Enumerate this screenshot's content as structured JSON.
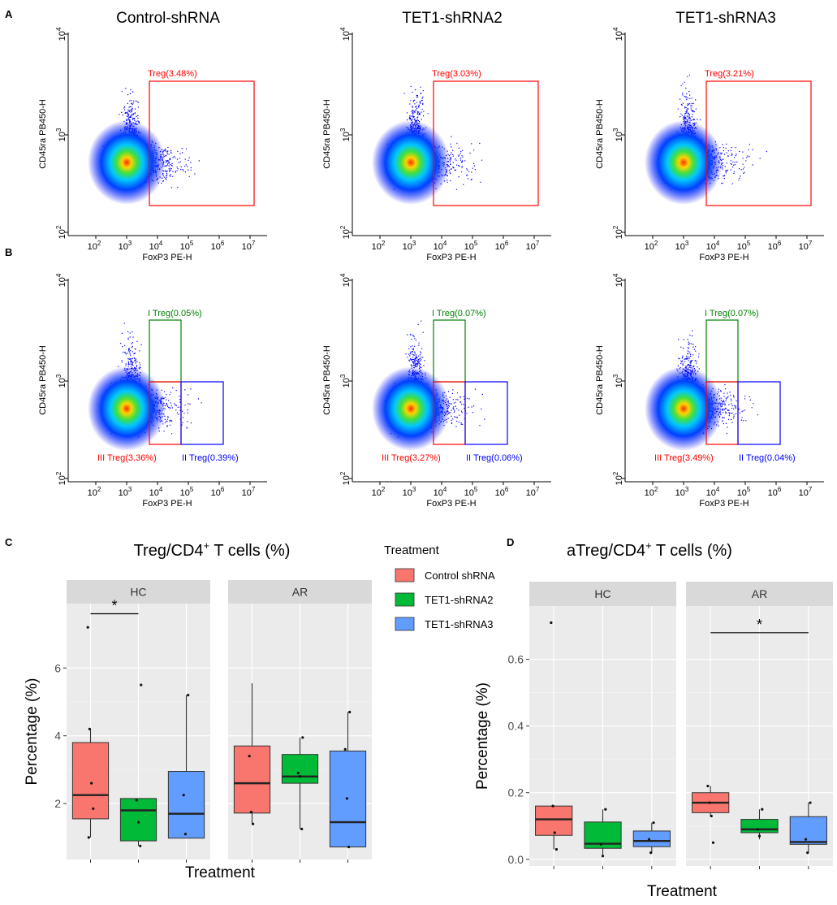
{
  "panel_labels": {
    "A": "A",
    "B": "B",
    "C": "C",
    "D": "D"
  },
  "colors": {
    "treg_gate": "#ff0000",
    "itreg_gate": "#008000",
    "iiitreg_gate": "#ff0000",
    "iitreg_gate": "#0000ff",
    "panel_bg": "#ebebeb",
    "strip_bg": "#d9d9d9",
    "grid": "#ffffff",
    "dots_low": "#0000ff",
    "dots_high": "#ff0000"
  },
  "flow": {
    "column_titles": [
      "Control-shRNA",
      "TET1-shRNA2",
      "TET1-shRNA3"
    ],
    "xlabel": "FoxP3 PE-H",
    "ylabel": "CD45ra PB450-H",
    "x_ticks": [
      "10",
      "10",
      "10",
      "10",
      "10",
      "10"
    ],
    "x_tick_exps": [
      "2",
      "3",
      "4",
      "5",
      "6",
      "7"
    ],
    "y_ticks": [
      "10",
      "10",
      "10"
    ],
    "y_tick_exps": [
      "2",
      "3",
      "4"
    ],
    "row_a_gates": [
      "Treg(3.48%)",
      "Treg(3.03%)",
      "Treg(3.21%)"
    ],
    "row_b_gates": [
      {
        "i": "I Treg(0.05%)",
        "iii": "III Treg(3.36%)",
        "ii": "II Treg(0.39%)"
      },
      {
        "i": "I Treg(0.07%)",
        "iii": "III Treg(3.27%)",
        "ii": "II Treg(0.06%)"
      },
      {
        "i": "I Treg(0.07%)",
        "iii": "III Treg(3.49%)",
        "ii": "II Treg(0.04%)"
      }
    ]
  },
  "legend": {
    "title": "Treatment",
    "items": [
      {
        "label": "Control shRNA",
        "color": "#f8766d"
      },
      {
        "label": "TET1-shRNA2",
        "color": "#00ba38"
      },
      {
        "label": "TET1-shRNA3",
        "color": "#619cff"
      }
    ]
  },
  "chart_data": [
    {
      "type": "box",
      "panel": "C",
      "title": "Treg/CD4",
      "title_sup": "+",
      "title_suffix": " T cells (%)",
      "xlabel": "Treatment",
      "ylabel": "Percentage (%)",
      "ylim": [
        0.35,
        7.9
      ],
      "yticks": [
        2,
        4,
        6
      ],
      "ytick_labels": [
        "2",
        "4",
        "6"
      ],
      "facets": [
        {
          "name": "HC",
          "significance": {
            "from": 0,
            "to": 1,
            "y": 7.6,
            "label": "*"
          },
          "groups": [
            {
              "q1": 1.55,
              "median": 2.25,
              "q3": 3.8,
              "whisker_low": 1.0,
              "whisker_high": 4.2,
              "points": [
                7.2,
                4.2,
                2.6,
                1.85,
                1.0
              ]
            },
            {
              "q1": 0.9,
              "median": 1.8,
              "q3": 2.15,
              "whisker_low": 0.75,
              "whisker_high": 2.15,
              "points": [
                5.5,
                2.1,
                1.45,
                0.75
              ]
            },
            {
              "q1": 0.98,
              "median": 1.7,
              "q3": 2.95,
              "whisker_low": 0.98,
              "whisker_high": 5.2,
              "points": [
                5.2,
                2.25,
                1.1
              ]
            }
          ]
        },
        {
          "name": "AR",
          "significance": null,
          "groups": [
            {
              "q1": 1.72,
              "median": 2.6,
              "q3": 3.7,
              "whisker_low": 1.4,
              "whisker_high": 5.55,
              "points": [
                3.4,
                1.75,
                1.4
              ]
            },
            {
              "q1": 2.6,
              "median": 2.8,
              "q3": 3.45,
              "whisker_low": 1.25,
              "whisker_high": 3.95,
              "points": [
                3.95,
                2.9,
                2.8,
                1.25
              ]
            },
            {
              "q1": 0.72,
              "median": 1.45,
              "q3": 3.55,
              "whisker_low": 0.72,
              "whisker_high": 4.7,
              "points": [
                4.7,
                3.6,
                2.15,
                0.72
              ]
            }
          ]
        }
      ]
    },
    {
      "type": "box",
      "panel": "D",
      "title": "aTreg/CD4",
      "title_sup": "+",
      "title_suffix": " T cells (%)",
      "xlabel": "Treatment",
      "ylabel": "Percentage (%)",
      "ylim": [
        -0.02,
        0.76
      ],
      "yticks": [
        0.0,
        0.2,
        0.4,
        0.6
      ],
      "ytick_labels": [
        "0.0",
        "0.2",
        "0.4",
        "0.6"
      ],
      "facets": [
        {
          "name": "HC",
          "significance": null,
          "groups": [
            {
              "q1": 0.072,
              "median": 0.12,
              "q3": 0.16,
              "whisker_low": 0.03,
              "whisker_high": 0.16,
              "points": [
                0.71,
                0.16,
                0.08,
                0.03
              ]
            },
            {
              "q1": 0.033,
              "median": 0.047,
              "q3": 0.112,
              "whisker_low": 0.01,
              "whisker_high": 0.15,
              "points": [
                0.15,
                0.045,
                0.01
              ]
            },
            {
              "q1": 0.038,
              "median": 0.055,
              "q3": 0.085,
              "whisker_low": 0.02,
              "whisker_high": 0.11,
              "points": [
                0.11,
                0.06,
                0.02
              ]
            }
          ]
        },
        {
          "name": "AR",
          "significance": {
            "from": 0,
            "to": 2,
            "y": 0.68,
            "label": "*"
          },
          "groups": [
            {
              "q1": 0.14,
              "median": 0.17,
              "q3": 0.2,
              "whisker_low": 0.13,
              "whisker_high": 0.22,
              "points": [
                0.22,
                0.17,
                0.13,
                0.05
              ]
            },
            {
              "q1": 0.08,
              "median": 0.09,
              "q3": 0.12,
              "whisker_low": 0.06,
              "whisker_high": 0.15,
              "points": [
                0.15,
                0.09,
                0.07
              ]
            },
            {
              "q1": 0.045,
              "median": 0.052,
              "q3": 0.128,
              "whisker_low": 0.02,
              "whisker_high": 0.17,
              "points": [
                0.17,
                0.06,
                0.02
              ]
            }
          ]
        }
      ]
    }
  ]
}
